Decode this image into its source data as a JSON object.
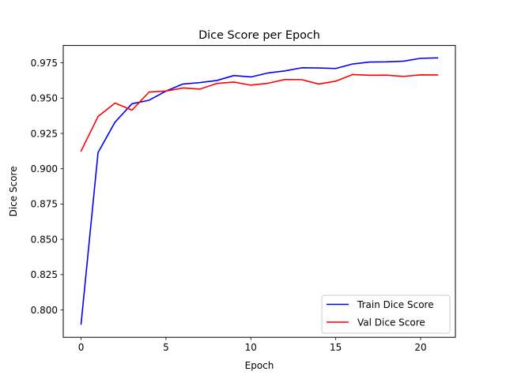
{
  "chart_data": {
    "type": "line",
    "title": "Dice Score per Epoch",
    "xlabel": "Epoch",
    "ylabel": "Dice Score",
    "xlim": [
      -1.05,
      22.05
    ],
    "ylim": [
      0.7806,
      0.9873
    ],
    "xticks": [
      0,
      5,
      10,
      15,
      20
    ],
    "xtick_labels": [
      "0",
      "5",
      "10",
      "15",
      "20"
    ],
    "yticks": [
      0.8,
      0.825,
      0.85,
      0.875,
      0.9,
      0.925,
      0.95,
      0.975
    ],
    "ytick_labels": [
      "0.800",
      "0.825",
      "0.850",
      "0.875",
      "0.900",
      "0.925",
      "0.950",
      "0.975"
    ],
    "grid": false,
    "legend_position": "lower-right",
    "x": [
      0,
      1,
      2,
      3,
      4,
      5,
      6,
      7,
      8,
      9,
      10,
      11,
      12,
      13,
      14,
      15,
      16,
      17,
      18,
      19,
      20,
      21
    ],
    "series": [
      {
        "name": "Train Dice Score",
        "color": "#0000ff",
        "values": [
          0.79,
          0.9115,
          0.933,
          0.946,
          0.9485,
          0.955,
          0.96,
          0.961,
          0.9625,
          0.966,
          0.965,
          0.9678,
          0.9693,
          0.9715,
          0.9714,
          0.971,
          0.9742,
          0.9756,
          0.9757,
          0.9762,
          0.9782,
          0.9785
        ]
      },
      {
        "name": "Val Dice Score",
        "color": "#ff0000",
        "values": [
          0.9125,
          0.937,
          0.9465,
          0.9415,
          0.9543,
          0.955,
          0.9572,
          0.9564,
          0.9604,
          0.9614,
          0.9592,
          0.9605,
          0.9632,
          0.9631,
          0.96,
          0.962,
          0.9667,
          0.9662,
          0.9663,
          0.9654,
          0.9665,
          0.9664
        ]
      }
    ]
  }
}
